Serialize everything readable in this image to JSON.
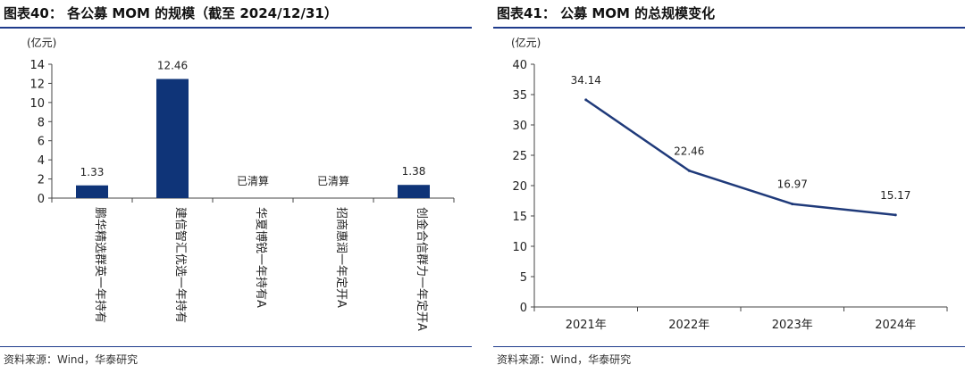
{
  "left": {
    "title": "图表40：  各公募 MOM 的规模（截至 2024/12/31）",
    "source": "资料来源：Wind，华泰研究",
    "chart_data": {
      "type": "bar",
      "unit": "(亿元)",
      "ylim": [
        0,
        14
      ],
      "yticks": [
        "0",
        "2",
        "4",
        "6",
        "8",
        "10",
        "12",
        "14"
      ],
      "categories": [
        "鹏华精选群英一年持有",
        "建信智汇优选一年持有",
        "华夏博锐一年持有A",
        "招商惠润一年定开A",
        "创金合信群力一年定开A"
      ],
      "values": [
        1.33,
        12.46,
        null,
        null,
        1.38
      ],
      "labels": [
        "1.33",
        "12.46",
        "已清算",
        "已清算",
        "1.38"
      ],
      "bar_color": "#0f3478"
    }
  },
  "right": {
    "title": "图表41：  公募 MOM 的总规模变化",
    "source": "资料来源：Wind，华泰研究",
    "chart_data": {
      "type": "line",
      "unit": "(亿元)",
      "ylim": [
        0,
        40
      ],
      "yticks": [
        "0",
        "5",
        "10",
        "15",
        "20",
        "25",
        "30",
        "35",
        "40"
      ],
      "categories": [
        "2021年",
        "2022年",
        "2023年",
        "2024年"
      ],
      "values": [
        34.14,
        22.46,
        16.97,
        15.17
      ],
      "labels": [
        "34.14",
        "22.46",
        "16.97",
        "15.17"
      ],
      "line_color": "#1f3a7a"
    }
  }
}
